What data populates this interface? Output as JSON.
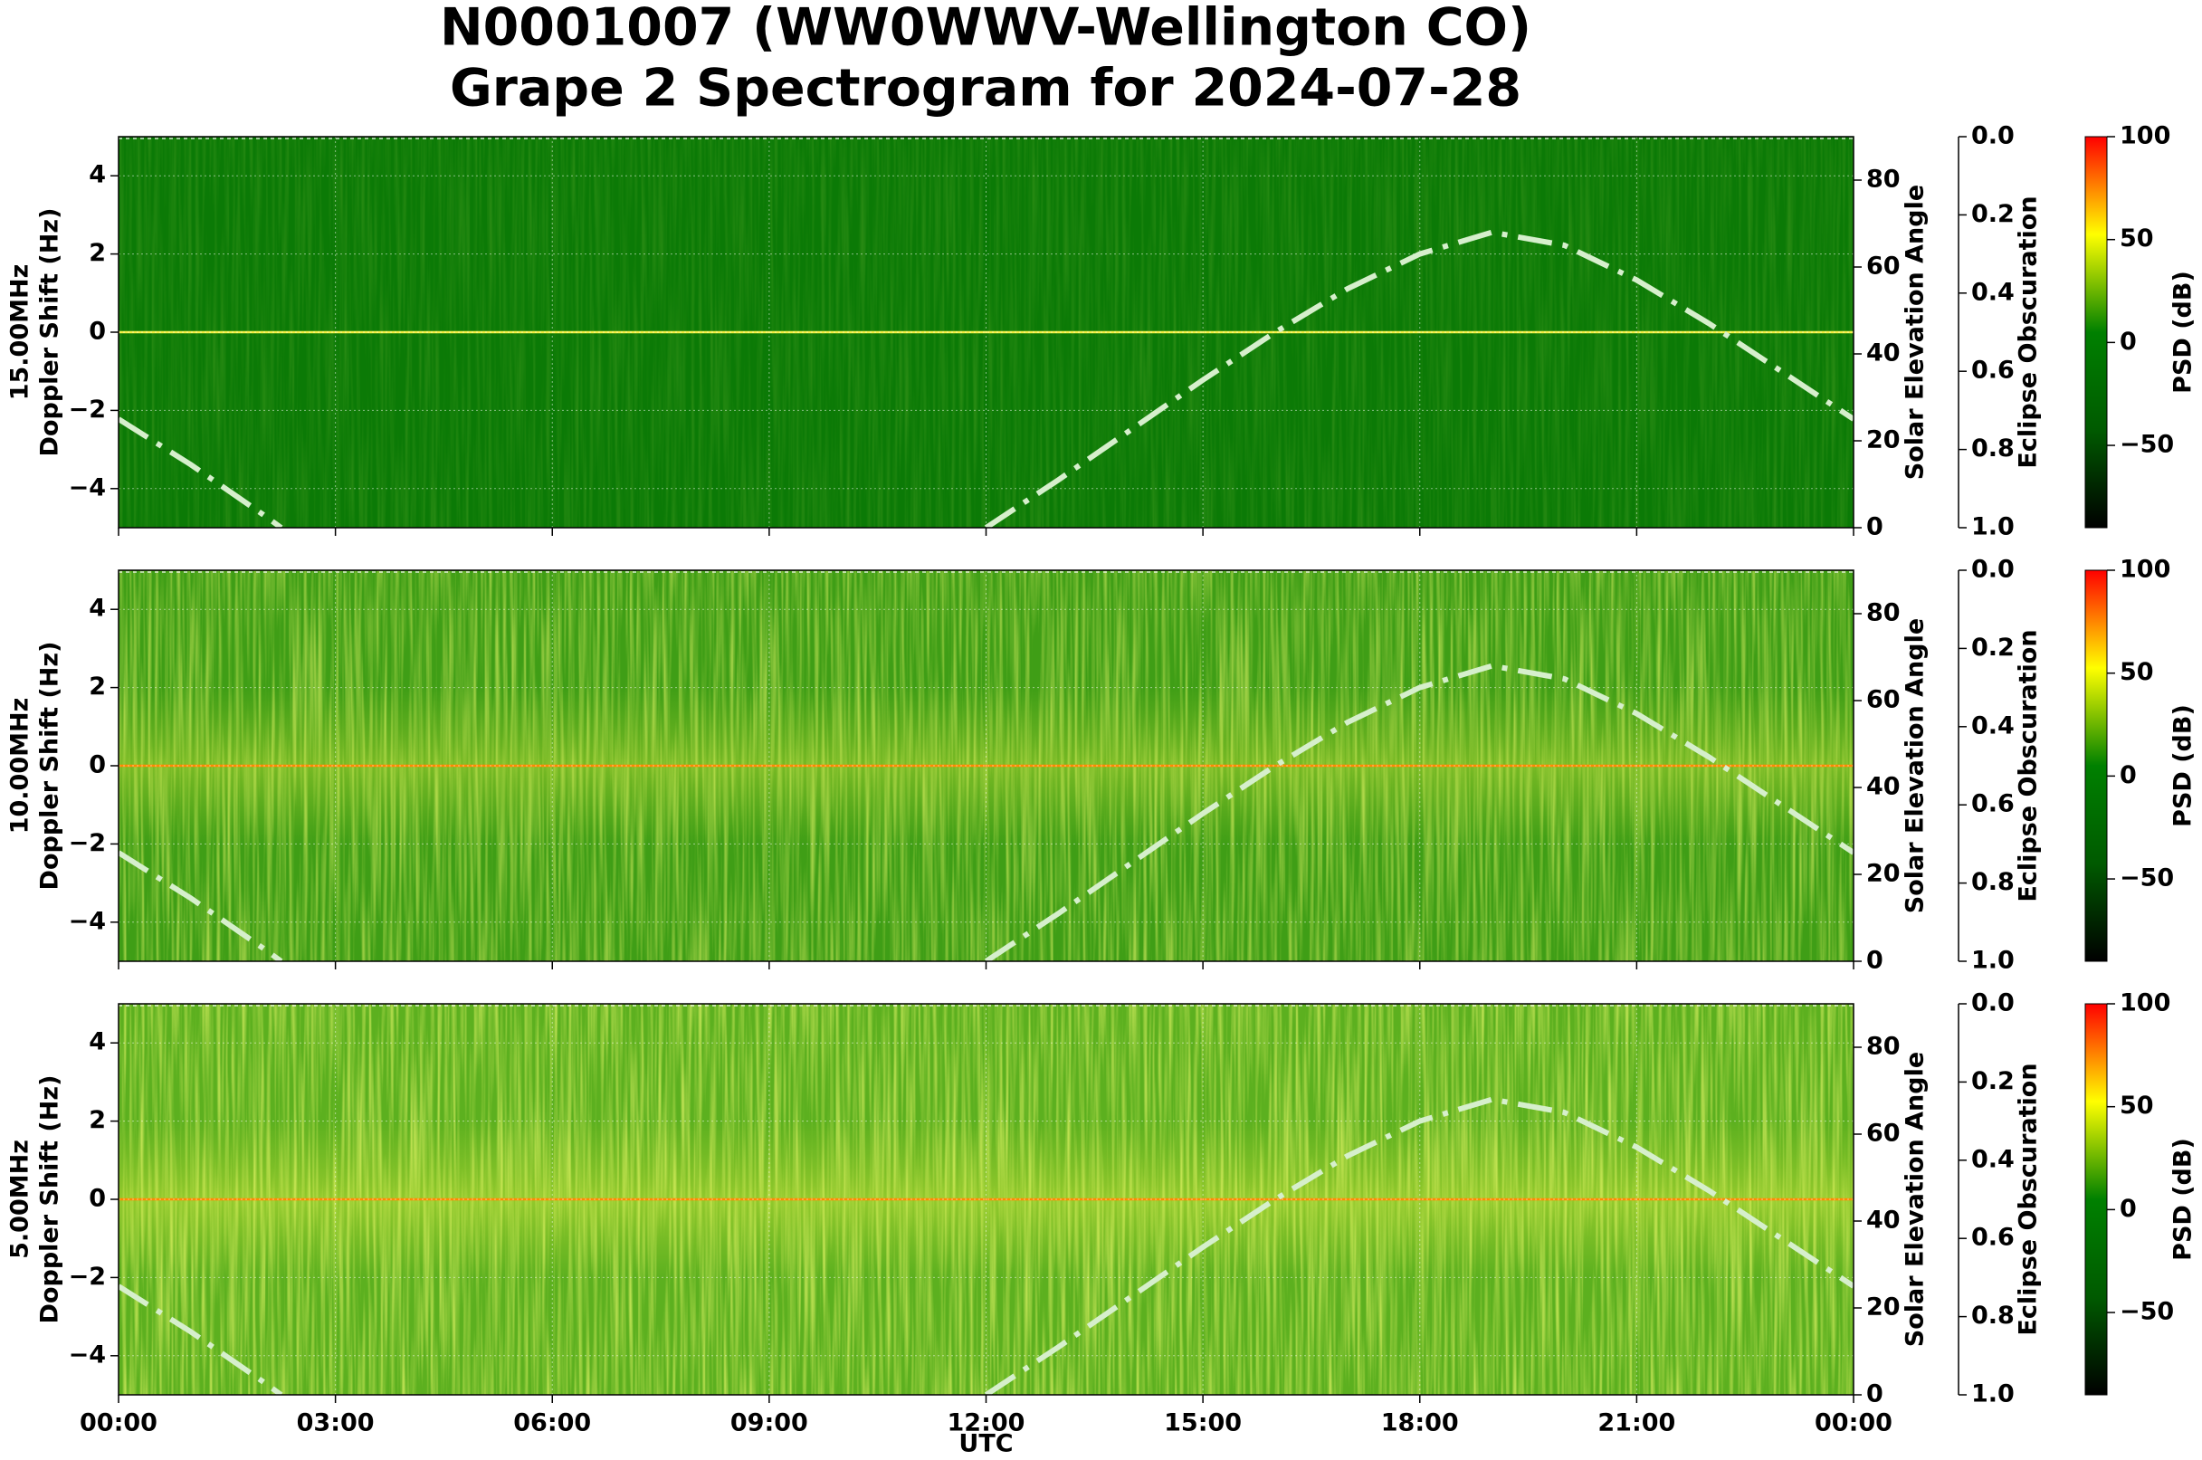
{
  "chart_data": {
    "type": "spectrogram",
    "title": [
      "N0001007 (WW0WWV-Wellington CO)",
      "Grape 2 Spectrogram for 2024-07-28"
    ],
    "xlabel": "UTC",
    "xlim": [
      0,
      24
    ],
    "xticks": [
      {
        "value": 0,
        "label": "00:00"
      },
      {
        "value": 3,
        "label": "03:00"
      },
      {
        "value": 6,
        "label": "06:00"
      },
      {
        "value": 9,
        "label": "09:00"
      },
      {
        "value": 12,
        "label": "12:00"
      },
      {
        "value": 15,
        "label": "15:00"
      },
      {
        "value": 18,
        "label": "18:00"
      },
      {
        "value": 21,
        "label": "21:00"
      },
      {
        "value": 24,
        "label": "00:00"
      }
    ],
    "grid": true,
    "panels": [
      {
        "frequency": "15.00MHz",
        "ylabel": "Doppler Shift (Hz)",
        "background": "#0b7a06",
        "ylim": [
          -5,
          5
        ],
        "yticks": [
          {
            "value": -4,
            "label": "−4"
          },
          {
            "value": -2,
            "label": "−2"
          },
          0,
          2,
          4
        ],
        "y2label": "Solar Elevation Angle",
        "y2lim": [
          0,
          90
        ],
        "y2ticks": [
          0,
          20,
          40,
          60,
          80
        ],
        "y3label": "Eclipse Obscuration",
        "y3lim": [
          1,
          0
        ],
        "y3ticks": [
          {
            "value": 0,
            "label": "0.0"
          },
          0.2,
          0.4,
          0.6,
          0.8,
          {
            "value": 1,
            "label": "1.0"
          }
        ],
        "series": [
          {
            "color": "#d6efcc",
            "axis": "y2",
            "x": [
              0,
              1,
              2,
              2.25,
              7,
              12,
              13,
              14,
              15,
              16,
              17,
              18,
              19,
              20,
              21,
              22,
              23,
              24
            ],
            "values": [
              25,
              14.5,
              3,
              0,
              null,
              0,
              11,
              22.5,
              34,
              45,
              55,
              63,
              68,
              65,
              57,
              47,
              36,
              25
            ]
          }
        ],
        "colorbar": {
          "label": "PSD (dB)",
          "lim": [
            -90,
            100
          ],
          "ticks": [
            {
              "value": -50,
              "label": "−50"
            },
            0,
            50,
            100
          ],
          "colors": [
            "#000000",
            "#005a00",
            "#008000",
            "#ffff00",
            "#ff0000"
          ]
        }
      },
      {
        "frequency": "10.00MHz",
        "ylabel": "Doppler Shift (Hz)",
        "background": "#3f9e16",
        "ylim": [
          -5,
          5
        ],
        "yticks": [
          {
            "value": -4,
            "label": "−4"
          },
          {
            "value": -2,
            "label": "−2"
          },
          0,
          2,
          4
        ],
        "y2label": "Solar Elevation Angle",
        "y2lim": [
          0,
          90
        ],
        "y2ticks": [
          0,
          20,
          40,
          60,
          80
        ],
        "y3label": "Eclipse Obscuration",
        "y3lim": [
          1,
          0
        ],
        "y3ticks": [
          {
            "value": 0,
            "label": "0.0"
          },
          0.2,
          0.4,
          0.6,
          0.8,
          {
            "value": 1,
            "label": "1.0"
          }
        ],
        "series": [
          {
            "color": "#d6efcc",
            "axis": "y2",
            "x": [
              0,
              1,
              2,
              2.25,
              7,
              12,
              13,
              14,
              15,
              16,
              17,
              18,
              19,
              20,
              21,
              22,
              23,
              24
            ],
            "values": [
              25,
              14.5,
              3,
              0,
              null,
              0,
              11,
              22.5,
              34,
              45,
              55,
              63,
              68,
              65,
              57,
              47,
              36,
              25
            ]
          }
        ],
        "colorbar": {
          "label": "PSD (dB)",
          "lim": [
            -90,
            100
          ],
          "ticks": [
            {
              "value": -50,
              "label": "−50"
            },
            0,
            50,
            100
          ],
          "colors": [
            "#000000",
            "#005a00",
            "#008000",
            "#ffff00",
            "#ff0000"
          ]
        }
      },
      {
        "frequency": "5.00MHz",
        "ylabel": "Doppler Shift (Hz)",
        "background": "#5cb01f",
        "ylim": [
          -5,
          5
        ],
        "yticks": [
          {
            "value": -4,
            "label": "−4"
          },
          {
            "value": -2,
            "label": "−2"
          },
          0,
          2,
          4
        ],
        "y2label": "Solar Elevation Angle",
        "y2lim": [
          0,
          90
        ],
        "y2ticks": [
          0,
          20,
          40,
          60,
          80
        ],
        "y3label": "Eclipse Obscuration",
        "y3lim": [
          1,
          0
        ],
        "y3ticks": [
          {
            "value": 0,
            "label": "0.0"
          },
          0.2,
          0.4,
          0.6,
          0.8,
          {
            "value": 1,
            "label": "1.0"
          }
        ],
        "series": [
          {
            "color": "#d6efcc",
            "axis": "y2",
            "x": [
              0,
              1,
              2,
              2.25,
              7,
              12,
              13,
              14,
              15,
              16,
              17,
              18,
              19,
              20,
              21,
              22,
              23,
              24
            ],
            "values": [
              25,
              14.5,
              3,
              0,
              null,
              0,
              11,
              22.5,
              34,
              45,
              55,
              63,
              68,
              65,
              57,
              47,
              36,
              25
            ]
          }
        ],
        "colorbar": {
          "label": "PSD (dB)",
          "lim": [
            -90,
            100
          ],
          "ticks": [
            {
              "value": -50,
              "label": "−50"
            },
            0,
            50,
            100
          ],
          "colors": [
            "#000000",
            "#005a00",
            "#008000",
            "#ffff00",
            "#ff0000"
          ]
        }
      }
    ]
  }
}
